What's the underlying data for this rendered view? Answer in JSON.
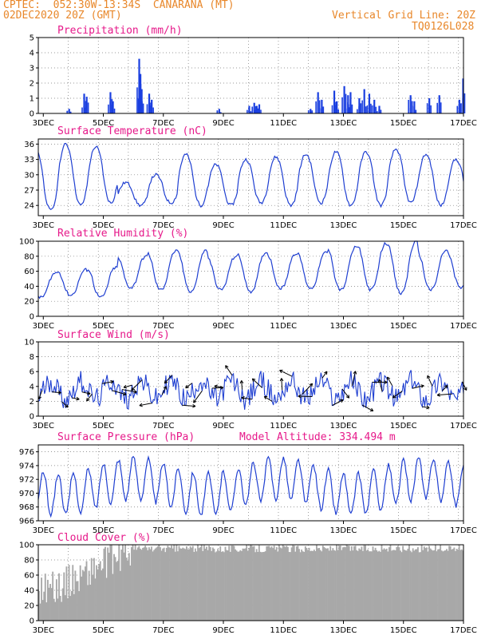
{
  "header": {
    "line1": "CPTEC:  052:30W-13:34S  CANARANA (MT)",
    "line2_left": "02DEC2020 20Z (GMT)",
    "line2_right": "Vertical Grid Line: 20Z",
    "line3_right": "TQ0126L028"
  },
  "model_altitude": "Model Altitude: 334.494 m",
  "colors": {
    "line": "#1f3fd1",
    "bar": "#1a3fe0",
    "cloud": "#a8a8a8",
    "title": "#e6198a",
    "header": "#e8872a"
  },
  "x_axis": {
    "labels": [
      "3DEC",
      "5DEC",
      "7DEC",
      "9DEC",
      "11DEC",
      "13DEC",
      "15DEC",
      "17DEC"
    ]
  },
  "chart_data": [
    {
      "type": "bar",
      "title": "Precipitation (mm/h)",
      "ylim": [
        0,
        5
      ],
      "yticks": [
        "0",
        "1",
        "2",
        "3",
        "4",
        "5"
      ],
      "x_range": [
        "02DEC2020 20Z",
        "17DEC2020 00Z"
      ],
      "events": [
        {
          "x": "03DEC 20Z",
          "y": 0.3
        },
        {
          "x": "04DEC 08Z",
          "y": 1.3
        },
        {
          "x": "04DEC 10Z",
          "y": 1.1
        },
        {
          "x": "05DEC 05Z",
          "y": 1.4
        },
        {
          "x": "05DEC 07Z",
          "y": 0.8
        },
        {
          "x": "06DEC 04Z",
          "y": 3.6
        },
        {
          "x": "06DEC 05Z",
          "y": 2.6
        },
        {
          "x": "06DEC 06Z",
          "y": 1.6
        },
        {
          "x": "06DEC 12Z",
          "y": 1.3
        },
        {
          "x": "06DEC 14Z",
          "y": 0.9
        },
        {
          "x": "08DEC 20Z",
          "y": 0.3
        },
        {
          "x": "09DEC 20Z",
          "y": 0.5
        },
        {
          "x": "10DEC 00Z",
          "y": 0.7
        },
        {
          "x": "10DEC 02Z",
          "y": 0.5
        },
        {
          "x": "10DEC 04Z",
          "y": 0.6
        },
        {
          "x": "11DEC 21Z",
          "y": 0.3
        },
        {
          "x": "12DEC 03Z",
          "y": 1.4
        },
        {
          "x": "12DEC 06Z",
          "y": 0.9
        },
        {
          "x": "12DEC 16Z",
          "y": 1.5
        },
        {
          "x": "12DEC 18Z",
          "y": 0.8
        },
        {
          "x": "13DEC 00Z",
          "y": 1.8
        },
        {
          "x": "13DEC 03Z",
          "y": 1.2
        },
        {
          "x": "13DEC 05Z",
          "y": 1.4
        },
        {
          "x": "13DEC 12Z",
          "y": 1.0
        },
        {
          "x": "13DEC 16Z",
          "y": 1.6
        },
        {
          "x": "13DEC 20Z",
          "y": 1.3
        },
        {
          "x": "14DEC 00Z",
          "y": 0.9
        },
        {
          "x": "14DEC 04Z",
          "y": 0.5
        },
        {
          "x": "15DEC 05Z",
          "y": 1.2
        },
        {
          "x": "15DEC 08Z",
          "y": 0.8
        },
        {
          "x": "15DEC 20Z",
          "y": 1.0
        },
        {
          "x": "16DEC 04Z",
          "y": 1.2
        },
        {
          "x": "16DEC 20Z",
          "y": 0.9
        },
        {
          "x": "16DEC 23Z",
          "y": 2.3
        }
      ]
    },
    {
      "type": "line",
      "title": "Surface Temperature (nC)",
      "ylim": [
        22,
        37
      ],
      "yticks": [
        "24",
        "27",
        "30",
        "33",
        "36"
      ],
      "daily_max": [
        35.0,
        36.0,
        35.5,
        28.5,
        30.0,
        34.0,
        32.0,
        33.0,
        33.5,
        34.0,
        34.5,
        34.5,
        35.0,
        34.0,
        33.0
      ],
      "daily_min": [
        23.0,
        24.0,
        24.5,
        24.0,
        24.5,
        24.0,
        24.0,
        24.5,
        24.0,
        24.5,
        24.0,
        24.0,
        24.5,
        24.0,
        24.5
      ]
    },
    {
      "type": "line",
      "title": "Relative Humidity (%)",
      "ylim": [
        0,
        100
      ],
      "yticks": [
        "0",
        "20",
        "40",
        "60",
        "80",
        "100"
      ],
      "daily_max": [
        58,
        62,
        65,
        80,
        87,
        88,
        80,
        85,
        84,
        85,
        92,
        97,
        100,
        88,
        85
      ],
      "daily_min": [
        25,
        28,
        25,
        38,
        35,
        33,
        35,
        33,
        37,
        37,
        35,
        35,
        30,
        35,
        38
      ]
    },
    {
      "type": "line",
      "title": "Surface Wind (m/s)",
      "ylim": [
        0,
        10
      ],
      "yticks": [
        "0",
        "2",
        "4",
        "6",
        "8",
        "10"
      ],
      "typical_range": [
        1,
        8
      ],
      "vectors": "hourly direction arrows along the speed line"
    },
    {
      "type": "line",
      "title": "Surface Pressure (hPa)",
      "ylim": [
        966,
        977
      ],
      "yticks": [
        "966",
        "968",
        "970",
        "972",
        "974",
        "976"
      ],
      "mean_level": 971,
      "semidiurnal_amplitude": 3
    },
    {
      "type": "bar",
      "title": "Cloud Cover (%)",
      "ylim": [
        0,
        100
      ],
      "yticks": [
        "0",
        "20",
        "40",
        "60",
        "80",
        "100"
      ],
      "early_level": 45,
      "late_level": 95
    }
  ]
}
